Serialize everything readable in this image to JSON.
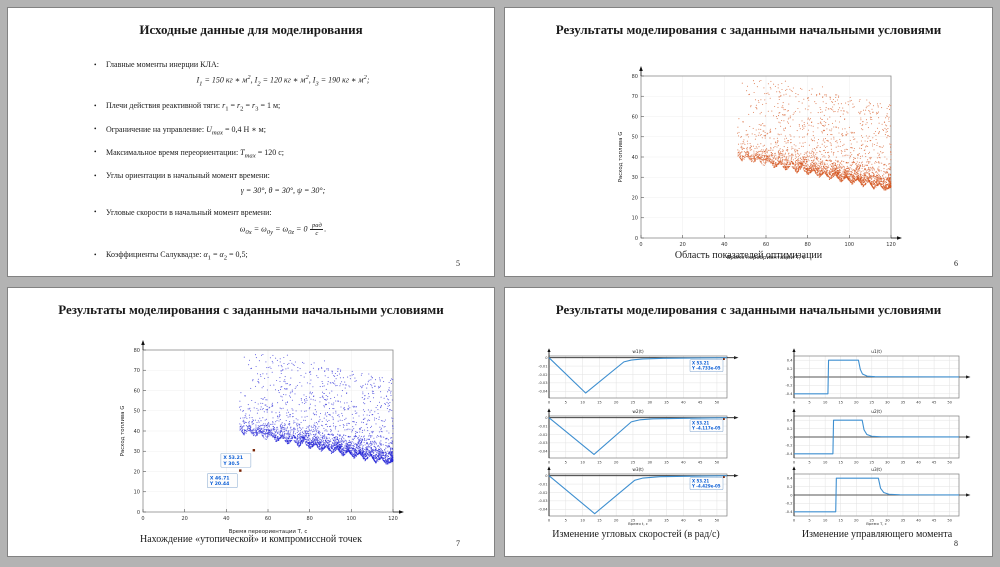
{
  "page": {
    "background": "#b3b3b3",
    "layout": "4-slide handout grid"
  },
  "slides": [
    {
      "id": "slide-5",
      "page_number": "5",
      "title": "Исходные данные для моделирования",
      "bullets": [
        {
          "text": "Главные моменты инерции КЛА:",
          "formula": "<i>I</i><sub>1</sub> = 150 кг ∗ м<sup>2</sup>, <i>I</i><sub>2</sub> = 120 кг ∗ м<sup>2</sup>, <i>I</i><sub>3</sub> = 190 кг ∗ м<sup>2</sup>;"
        },
        {
          "text": "Плечи действия реактивной тяги: <i>r</i><sub>1</sub> = <i>r</i><sub>2</sub> = <i>r</i><sub>3</sub> = 1 м;"
        },
        {
          "text": "Ограничение на управление: <i>U<sub>max</sub></i> = 0,4 Н ∗ м;"
        },
        {
          "text": "Максимальное время переориентации: <i>T<sub>max</sub></i> = 120 с;"
        },
        {
          "text": "Углы ориентации в начальный момент времени:",
          "formula": "<i>γ</i> = 30°, <i>θ</i> = 30°, <i>ψ</i> = 30°;"
        },
        {
          "text": "Угловые скорости в начальный момент времени:",
          "formula": "<i>ω</i><sub>0x</sub> = <i>ω</i><sub>0y</sub> = <i>ω</i><sub>0z</sub> = 0 <span class='frac'><span class='num'>рад</span><span>с</span></span>."
        },
        {
          "text": "Коэффициенты Салуквадзе: <i>α</i><sub>1</sub> = <i>α</i><sub>2</sub> = 0,5;"
        }
      ]
    },
    {
      "id": "slide-6",
      "page_number": "6",
      "title": "Результаты моделирования с заданными начальными условиями",
      "caption": "Область показателей оптимизации",
      "chart_ref": "optimization-area"
    },
    {
      "id": "slide-7",
      "page_number": "7",
      "title": "Результаты моделирования с заданными начальными условиями",
      "caption": "Нахождение «утопической» и компромиссной точек",
      "chart_ref": "utopia-compromise"
    },
    {
      "id": "slide-8",
      "page_number": "8",
      "title": "Результаты моделирования с заданными начальными условиями",
      "caption_left": "Изменение угловых скоростей (в рад/с)",
      "caption_right": "Изменение управляющего момента",
      "chart_refs": [
        "w1",
        "w2",
        "w3",
        "u1",
        "u2",
        "u3"
      ]
    }
  ],
  "chart_data": [
    {
      "id": "optimization-area",
      "slide": "slide-6",
      "type": "scatter",
      "xlabel": "Время переориентации T, с",
      "ylabel": "Расход топлива G",
      "xlim": [
        0,
        120
      ],
      "ylim": [
        0,
        80
      ],
      "xticks": [
        0,
        20,
        40,
        60,
        80,
        100,
        120
      ],
      "yticks": [
        0,
        10,
        20,
        30,
        40,
        50,
        60,
        70,
        80
      ],
      "point_color": "#d4541f",
      "description": "Dense cloud of simulation outcomes (fuel consumption G vs reorientation time T): points occupy T≈46–120 s; lower envelope falls from G≈38 at T≈47 to G≈22 at T=120; densest near lower envelope with periodic tooth-shaped clusters; sparse spread up to G≈78 with tall plumes near T≈67 and T≈88",
      "generator": {
        "seed": 7,
        "n": 2800,
        "t_min": 46,
        "t_max": 121,
        "bottom_start": 38.2,
        "bottom_slope": -0.215,
        "tooth_period": 5.3,
        "plumes": [
          66.8,
          88.2
        ],
        "y_max": 78
      }
    },
    {
      "id": "utopia-compromise",
      "slide": "slide-7",
      "type": "scatter",
      "xlabel": "Время переориентации T, с",
      "ylabel": "Расход топлива G",
      "xlim": [
        0,
        120
      ],
      "ylim": [
        0,
        80
      ],
      "xticks": [
        0,
        20,
        40,
        60,
        80,
        100,
        120
      ],
      "yticks": [
        0,
        10,
        20,
        30,
        40,
        50,
        60,
        70,
        80
      ],
      "point_color": "#2323d6",
      "description": "Same outcome cloud as slide 6 rendered in blue, with two MATLAB-style data tips marking the compromise point (X 53.21, Y 30.5) and the utopia point (X 46.71, Y 20.44)",
      "generator": {
        "seed": 7,
        "n": 2800,
        "t_min": 46,
        "t_max": 121,
        "bottom_start": 38.2,
        "bottom_slope": -0.215,
        "tooth_period": 5.3,
        "plumes": [
          66.8,
          88.2
        ],
        "y_max": 78
      },
      "datatips": [
        {
          "x": 53.21,
          "y": 30.5,
          "lines": [
            "X 53.21",
            "Y 30.5"
          ]
        },
        {
          "x": 46.71,
          "y": 20.44,
          "lines": [
            "X 46.71",
            "Y 20.44"
          ]
        }
      ]
    },
    {
      "id": "w1",
      "slide": "slide-8",
      "type": "line",
      "title": "w1(t)",
      "xlim": [
        0,
        53
      ],
      "ylim": [
        -0.048,
        0.002
      ],
      "xticks": [
        0,
        5,
        10,
        15,
        20,
        25,
        30,
        35,
        40,
        45,
        50
      ],
      "yticks": [
        0,
        -0.01,
        -0.02,
        -0.03,
        -0.04
      ],
      "ylabels": [
        "0",
        "-0.01",
        "-0.02",
        "-0.03",
        "-0.04"
      ],
      "color": "#3e8fd0",
      "xlabel": "",
      "points": [
        [
          0,
          0
        ],
        [
          10.9,
          -0.0421
        ],
        [
          22.3,
          -0.005
        ],
        [
          24.5,
          -0.0028
        ],
        [
          28,
          -0.0015
        ],
        [
          34,
          -0.0007
        ],
        [
          53,
          -5e-05
        ]
      ],
      "datatip": {
        "lines": [
          "X 53.21",
          "Y -4.733e-05"
        ]
      }
    },
    {
      "id": "w2",
      "slide": "slide-8",
      "type": "line",
      "title": "w2(t)",
      "xlim": [
        0,
        53
      ],
      "ylim": [
        -0.048,
        0.002
      ],
      "xticks": [
        0,
        5,
        10,
        15,
        20,
        25,
        30,
        35,
        40,
        45,
        50
      ],
      "yticks": [
        0,
        -0.01,
        -0.02,
        -0.03,
        -0.04
      ],
      "ylabels": [
        "0",
        "-0.01",
        "-0.02",
        "-0.03",
        "-0.04"
      ],
      "color": "#3e8fd0",
      "xlabel": "",
      "points": [
        [
          0,
          0
        ],
        [
          13.4,
          -0.0438
        ],
        [
          24.5,
          -0.005
        ],
        [
          27,
          -0.0026
        ],
        [
          31,
          -0.0013
        ],
        [
          53,
          -4e-05
        ]
      ],
      "datatip": {
        "lines": [
          "X 53.21",
          "Y -4.117e-05"
        ]
      }
    },
    {
      "id": "w3",
      "slide": "slide-8",
      "type": "line",
      "title": "w3(t)",
      "xlim": [
        0,
        53
      ],
      "ylim": [
        -0.048,
        0.002
      ],
      "xticks": [
        0,
        5,
        10,
        15,
        20,
        25,
        30,
        35,
        40,
        45,
        50
      ],
      "yticks": [
        0,
        -0.01,
        -0.02,
        -0.03,
        -0.04
      ],
      "ylabels": [
        "0",
        "-0.01",
        "-0.02",
        "-0.03",
        "-0.04"
      ],
      "color": "#3e8fd0",
      "xlabel": "Время t, с",
      "points": [
        [
          0,
          0
        ],
        [
          13.6,
          -0.0452
        ],
        [
          25.5,
          -0.0055
        ],
        [
          28,
          -0.0028
        ],
        [
          33,
          -0.0012
        ],
        [
          53,
          -4e-05
        ]
      ],
      "datatip": {
        "lines": [
          "X 53.21",
          "Y -4.429e-05"
        ]
      }
    },
    {
      "id": "u1",
      "slide": "slide-8",
      "type": "line",
      "title": "u1(t)",
      "xlim": [
        0,
        53
      ],
      "ylim": [
        -0.5,
        0.5
      ],
      "xticks": [
        0,
        5,
        10,
        15,
        20,
        25,
        30,
        35,
        40,
        45,
        50
      ],
      "yticks": [
        0.4,
        0.2,
        0,
        -0.2,
        -0.4
      ],
      "ylabels": [
        "0.4",
        "0.2",
        "0",
        "-0.2",
        "-0.4"
      ],
      "color": "#3e8fd0",
      "xlabel": "",
      "points": [
        [
          0,
          -0.4
        ],
        [
          10.9,
          -0.4
        ],
        [
          11.1,
          0.4
        ],
        [
          20.7,
          0.4
        ],
        [
          21.3,
          0.18
        ],
        [
          22,
          0.07
        ],
        [
          23.5,
          0.02
        ],
        [
          26,
          0.007
        ],
        [
          53,
          0.001
        ]
      ]
    },
    {
      "id": "u2",
      "slide": "slide-8",
      "type": "line",
      "title": "u2(t)",
      "xlim": [
        0,
        53
      ],
      "ylim": [
        -0.5,
        0.5
      ],
      "xticks": [
        0,
        5,
        10,
        15,
        20,
        25,
        30,
        35,
        40,
        45,
        50
      ],
      "yticks": [
        0.4,
        0.2,
        0,
        -0.2,
        -0.4
      ],
      "ylabels": [
        "0.4",
        "0.2",
        "0",
        "-0.2",
        "-0.4"
      ],
      "color": "#3e8fd0",
      "xlabel": "",
      "points": [
        [
          0,
          -0.4
        ],
        [
          12.5,
          -0.4
        ],
        [
          12.7,
          0.4
        ],
        [
          21.9,
          0.4
        ],
        [
          22.5,
          0.17
        ],
        [
          23.4,
          0.06
        ],
        [
          25,
          0.018
        ],
        [
          28,
          0.006
        ],
        [
          53,
          0.001
        ]
      ]
    },
    {
      "id": "u3",
      "slide": "slide-8",
      "type": "line",
      "title": "u3(t)",
      "xlim": [
        0,
        53
      ],
      "ylim": [
        -0.5,
        0.5
      ],
      "xticks": [
        0,
        5,
        10,
        15,
        20,
        25,
        30,
        35,
        40,
        45,
        50
      ],
      "yticks": [
        0.4,
        0.2,
        0,
        -0.2,
        -0.4
      ],
      "ylabels": [
        "0.4",
        "0.2",
        "0",
        "-0.2",
        "-0.4"
      ],
      "color": "#3e8fd0",
      "xlabel": "Время T, с",
      "points": [
        [
          0,
          -0.4
        ],
        [
          13.4,
          -0.4
        ],
        [
          13.6,
          0.4
        ],
        [
          27.1,
          0.4
        ],
        [
          27.8,
          0.16
        ],
        [
          28.8,
          0.06
        ],
        [
          30.5,
          0.018
        ],
        [
          34,
          0.006
        ],
        [
          53,
          0.001
        ]
      ]
    }
  ]
}
